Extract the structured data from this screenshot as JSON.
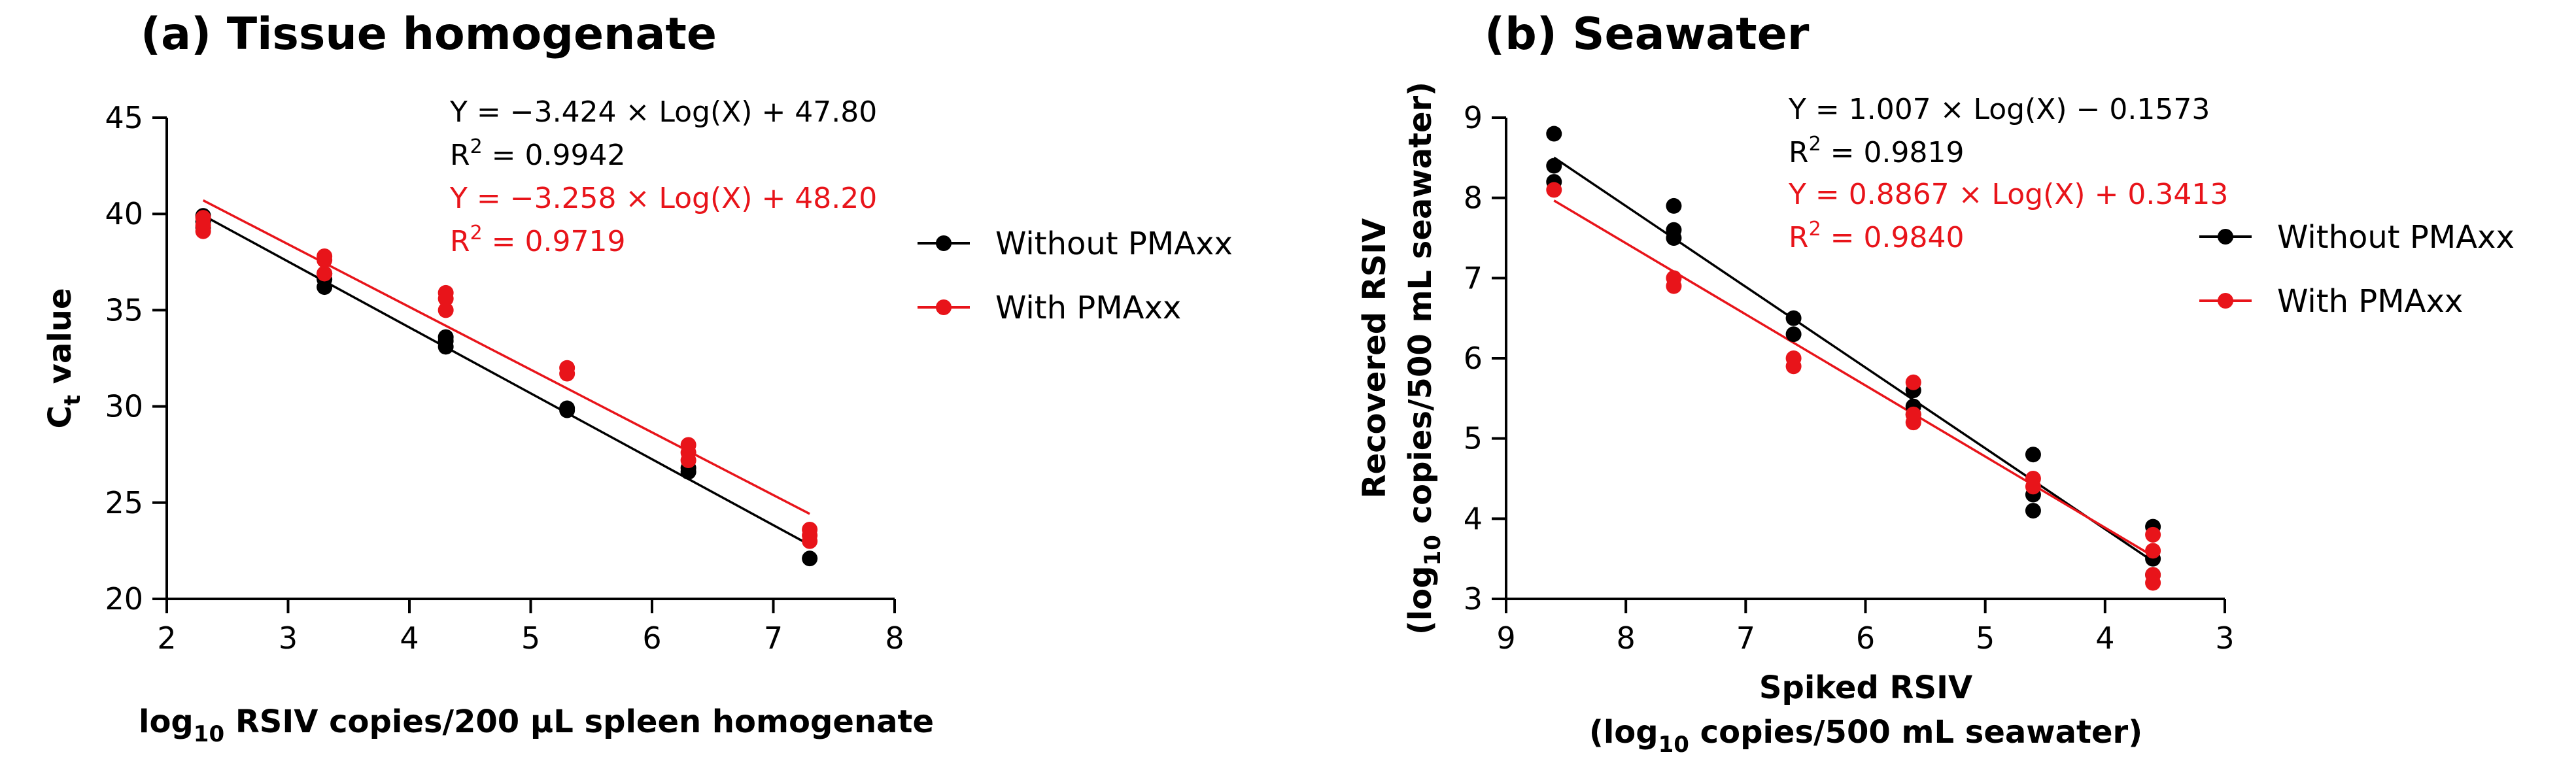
{
  "chart_data": [
    {
      "type": "scatter",
      "title": "(a) Tissue homogenate",
      "xlabel": {
        "prefix": "log",
        "sub": "10",
        "rest": " RSIV copies/200 μL spleen homogenate"
      },
      "ylabel": {
        "main": "C",
        "sub": "t",
        "rest": " value"
      },
      "xlim": [
        2,
        8
      ],
      "ylim": [
        20,
        45
      ],
      "xticks": [
        2,
        3,
        4,
        5,
        6,
        7,
        8
      ],
      "yticks": [
        20,
        25,
        30,
        35,
        40,
        45
      ],
      "legend": [
        "Without PMAxx",
        "With PMAxx"
      ],
      "series": [
        {
          "name": "Without PMAxx",
          "color": "#000000",
          "points": [
            [
              2.3,
              39.9
            ],
            [
              2.3,
              39.6
            ],
            [
              2.3,
              39.3
            ],
            [
              3.3,
              36.9
            ],
            [
              3.3,
              36.6
            ],
            [
              3.3,
              36.2
            ],
            [
              4.3,
              33.6
            ],
            [
              4.3,
              33.4
            ],
            [
              4.3,
              33.1
            ],
            [
              5.3,
              29.9
            ],
            [
              5.3,
              29.8
            ],
            [
              6.3,
              26.8
            ],
            [
              6.3,
              26.6
            ],
            [
              7.3,
              22.1
            ]
          ],
          "fit": {
            "slope": -3.424,
            "intercept": 47.8,
            "equation": "Y = −3.424 × Log(X) + 47.80",
            "r2_label": "R",
            "r2_value": " = 0.9942",
            "x_range": [
              2.3,
              7.3
            ]
          }
        },
        {
          "name": "With PMAxx",
          "color": "#e8141a",
          "points": [
            [
              2.3,
              39.8
            ],
            [
              2.3,
              39.4
            ],
            [
              2.3,
              39.1
            ],
            [
              3.3,
              37.8
            ],
            [
              3.3,
              37.6
            ],
            [
              3.3,
              36.9
            ],
            [
              4.3,
              35.9
            ],
            [
              4.3,
              35.6
            ],
            [
              4.3,
              35.0
            ],
            [
              5.3,
              32.0
            ],
            [
              5.3,
              31.7
            ],
            [
              6.3,
              28.0
            ],
            [
              6.3,
              27.6
            ],
            [
              6.3,
              27.2
            ],
            [
              7.3,
              23.6
            ],
            [
              7.3,
              23.3
            ],
            [
              7.3,
              23.0
            ]
          ],
          "fit": {
            "slope": -3.258,
            "intercept": 48.2,
            "equation": "Y = −3.258 × Log(X) + 48.20",
            "r2_label": "R",
            "r2_value": " = 0.9719",
            "x_range": [
              2.3,
              7.3
            ]
          }
        }
      ]
    },
    {
      "type": "scatter",
      "title": "(b) Seawater",
      "xlabel": {
        "line1": "Spiked RSIV",
        "prefix": "(log",
        "sub": "10",
        "rest": " copies/500 mL seawater)"
      },
      "ylabel": {
        "line1": "Recovered RSIV",
        "prefix": "(log",
        "sub": "10",
        "rest": " copies/500 mL seawater)"
      },
      "xlim": [
        9,
        3
      ],
      "ylim": [
        3,
        9
      ],
      "xticks": [
        9,
        8,
        7,
        6,
        5,
        4,
        3
      ],
      "yticks": [
        3,
        4,
        5,
        6,
        7,
        8,
        9
      ],
      "legend": [
        "Without PMAxx",
        "With PMAxx"
      ],
      "series": [
        {
          "name": "Without PMAxx",
          "color": "#000000",
          "points": [
            [
              8.6,
              8.8
            ],
            [
              8.6,
              8.4
            ],
            [
              8.6,
              8.2
            ],
            [
              7.6,
              7.9
            ],
            [
              7.6,
              7.6
            ],
            [
              7.6,
              7.5
            ],
            [
              6.6,
              6.5
            ],
            [
              6.6,
              6.3
            ],
            [
              5.6,
              5.6
            ],
            [
              5.6,
              5.4
            ],
            [
              5.6,
              5.3
            ],
            [
              4.6,
              4.8
            ],
            [
              4.6,
              4.3
            ],
            [
              4.6,
              4.1
            ],
            [
              3.6,
              3.9
            ],
            [
              3.6,
              3.5
            ],
            [
              3.6,
              3.3
            ]
          ],
          "fit": {
            "slope": 1.007,
            "intercept": -0.1573,
            "equation": "Y = 1.007 × Log(X) − 0.1573",
            "r2_label": "R",
            "r2_value": " = 0.9819",
            "x_range": [
              8.6,
              3.6
            ]
          }
        },
        {
          "name": "With PMAxx",
          "color": "#e8141a",
          "points": [
            [
              8.6,
              8.1
            ],
            [
              7.6,
              7.0
            ],
            [
              7.6,
              6.9
            ],
            [
              6.6,
              6.0
            ],
            [
              6.6,
              5.9
            ],
            [
              5.6,
              5.7
            ],
            [
              5.6,
              5.3
            ],
            [
              5.6,
              5.2
            ],
            [
              4.6,
              4.5
            ],
            [
              4.6,
              4.4
            ],
            [
              3.6,
              3.8
            ],
            [
              3.6,
              3.6
            ],
            [
              3.6,
              3.3
            ],
            [
              3.6,
              3.2
            ]
          ],
          "fit": {
            "slope": 0.8867,
            "intercept": 0.3413,
            "equation": "Y = 0.8867 × Log(X) + 0.3413",
            "r2_label": "R",
            "r2_value": " = 0.9840",
            "x_range": [
              8.6,
              3.6
            ]
          }
        }
      ]
    }
  ]
}
